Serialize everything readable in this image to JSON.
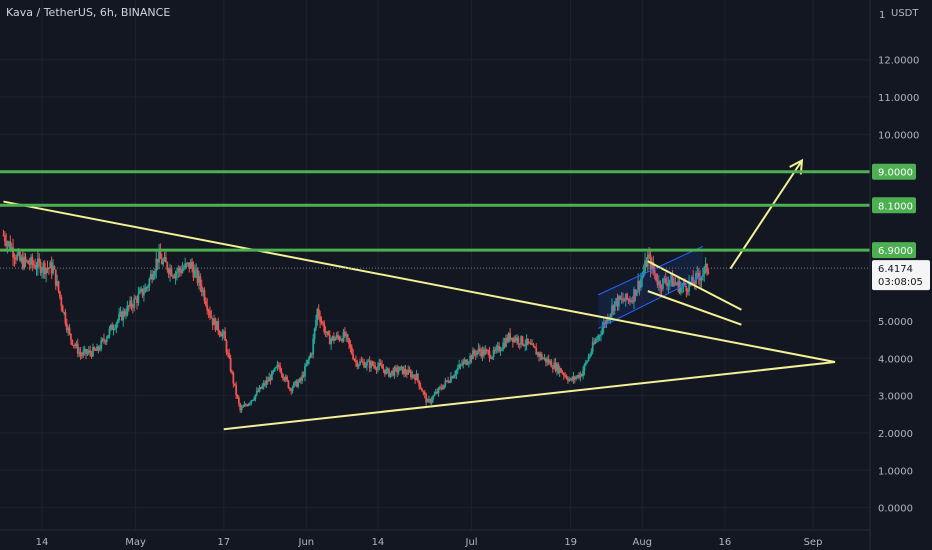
{
  "header": {
    "title": "Kava / TetherUS, 6h, BINANCE",
    "currency": "USDT",
    "scale_marker": "1"
  },
  "colors": {
    "background": "#131722",
    "grid": "#1e222d",
    "up": "#26a69a",
    "down": "#ef5350",
    "drawing": "#f2f195",
    "level": "#4caf50",
    "channel": "#2962ff"
  },
  "chart_data": {
    "type": "candlestick",
    "title": "Kava / TetherUS, 6h, BINANCE",
    "ylim": [
      -0.6,
      13.6
    ],
    "y_ticks": [
      "12.0000",
      "11.0000",
      "10.0000",
      "5.0000",
      "4.0000",
      "3.0000",
      "2.0000",
      "1.0000",
      "0.0000"
    ],
    "y_tick_values": [
      12,
      11,
      10,
      5,
      4,
      3,
      2,
      1,
      0
    ],
    "x_ticks": [
      "14",
      "May",
      "17",
      "Jun",
      "14",
      "Jul",
      "19",
      "Aug",
      "16",
      "Sep"
    ],
    "x_tick_dates": [
      "2021-04-14",
      "2021-05-01",
      "2021-05-17",
      "2021-06-01",
      "2021-06-14",
      "2021-07-01",
      "2021-07-19",
      "2021-08-01",
      "2021-08-16",
      "2021-09-01"
    ],
    "horizontal_levels": [
      {
        "value": 9.0,
        "label": "9.0000"
      },
      {
        "value": 8.1,
        "label": "8.1000"
      },
      {
        "value": 6.9,
        "label": "6.9000"
      }
    ],
    "last_price": {
      "value": 6.4174,
      "label": "6.4174",
      "countdown": "03:08:05"
    },
    "price_path": [
      [
        "2021-04-07",
        7.3
      ],
      [
        "2021-04-10",
        6.6
      ],
      [
        "2021-04-13",
        6.5
      ],
      [
        "2021-04-16",
        6.4
      ],
      [
        "2021-04-19",
        4.6
      ],
      [
        "2021-04-21",
        4.1
      ],
      [
        "2021-04-24",
        4.2
      ],
      [
        "2021-04-27",
        4.9
      ],
      [
        "2021-04-30",
        5.4
      ],
      [
        "2021-05-03",
        5.9
      ],
      [
        "2021-05-05",
        6.7
      ],
      [
        "2021-05-08",
        6.3
      ],
      [
        "2021-05-11",
        6.5
      ],
      [
        "2021-05-13",
        5.9
      ],
      [
        "2021-05-15",
        5.0
      ],
      [
        "2021-05-17",
        4.6
      ],
      [
        "2021-05-19",
        3.2
      ],
      [
        "2021-05-20",
        2.6
      ],
      [
        "2021-05-22",
        2.9
      ],
      [
        "2021-05-25",
        3.4
      ],
      [
        "2021-05-27",
        3.8
      ],
      [
        "2021-05-29",
        3.2
      ],
      [
        "2021-05-31",
        3.4
      ],
      [
        "2021-06-02",
        4.2
      ],
      [
        "2021-06-03",
        5.3
      ],
      [
        "2021-06-05",
        4.5
      ],
      [
        "2021-06-08",
        4.6
      ],
      [
        "2021-06-10",
        3.9
      ],
      [
        "2021-06-14",
        3.8
      ],
      [
        "2021-06-16",
        3.6
      ],
      [
        "2021-06-18",
        3.7
      ],
      [
        "2021-06-21",
        3.5
      ],
      [
        "2021-06-23",
        2.8
      ],
      [
        "2021-06-26",
        3.3
      ],
      [
        "2021-06-29",
        3.8
      ],
      [
        "2021-07-02",
        4.2
      ],
      [
        "2021-07-05",
        4.1
      ],
      [
        "2021-07-08",
        4.6
      ],
      [
        "2021-07-11",
        4.4
      ],
      [
        "2021-07-14",
        4.0
      ],
      [
        "2021-07-17",
        3.7
      ],
      [
        "2021-07-19",
        3.4
      ],
      [
        "2021-07-21",
        3.6
      ],
      [
        "2021-07-23",
        4.3
      ],
      [
        "2021-07-25",
        4.9
      ],
      [
        "2021-07-27",
        5.5
      ],
      [
        "2021-07-30",
        5.6
      ],
      [
        "2021-08-01",
        6.2
      ],
      [
        "2021-08-02",
        6.7
      ],
      [
        "2021-08-04",
        6.0
      ],
      [
        "2021-08-06",
        6.1
      ],
      [
        "2021-08-08",
        5.9
      ],
      [
        "2021-08-10",
        6.0
      ],
      [
        "2021-08-12",
        6.3
      ],
      [
        "2021-08-13",
        6.42
      ]
    ],
    "drawings": [
      {
        "type": "trendline",
        "from": [
          "2021-04-07",
          8.2
        ],
        "to": [
          "2021-09-05",
          3.9
        ]
      },
      {
        "type": "trendline",
        "from": [
          "2021-05-17",
          2.1
        ],
        "to": [
          "2021-09-05",
          3.9
        ]
      },
      {
        "type": "trendline",
        "from": [
          "2021-08-02",
          6.6
        ],
        "to": [
          "2021-08-19",
          5.3
        ]
      },
      {
        "type": "trendline",
        "from": [
          "2021-08-02",
          5.8
        ],
        "to": [
          "2021-08-19",
          4.9
        ]
      },
      {
        "type": "arrow",
        "from": [
          "2021-08-17",
          6.4
        ],
        "to": [
          "2021-08-30",
          9.3
        ]
      }
    ],
    "channel": {
      "lower": [
        [
          "2021-07-24",
          4.8
        ],
        [
          "2021-08-12",
          6.2
        ]
      ],
      "upper": [
        [
          "2021-07-24",
          5.7
        ],
        [
          "2021-08-12",
          7.0
        ]
      ]
    }
  }
}
